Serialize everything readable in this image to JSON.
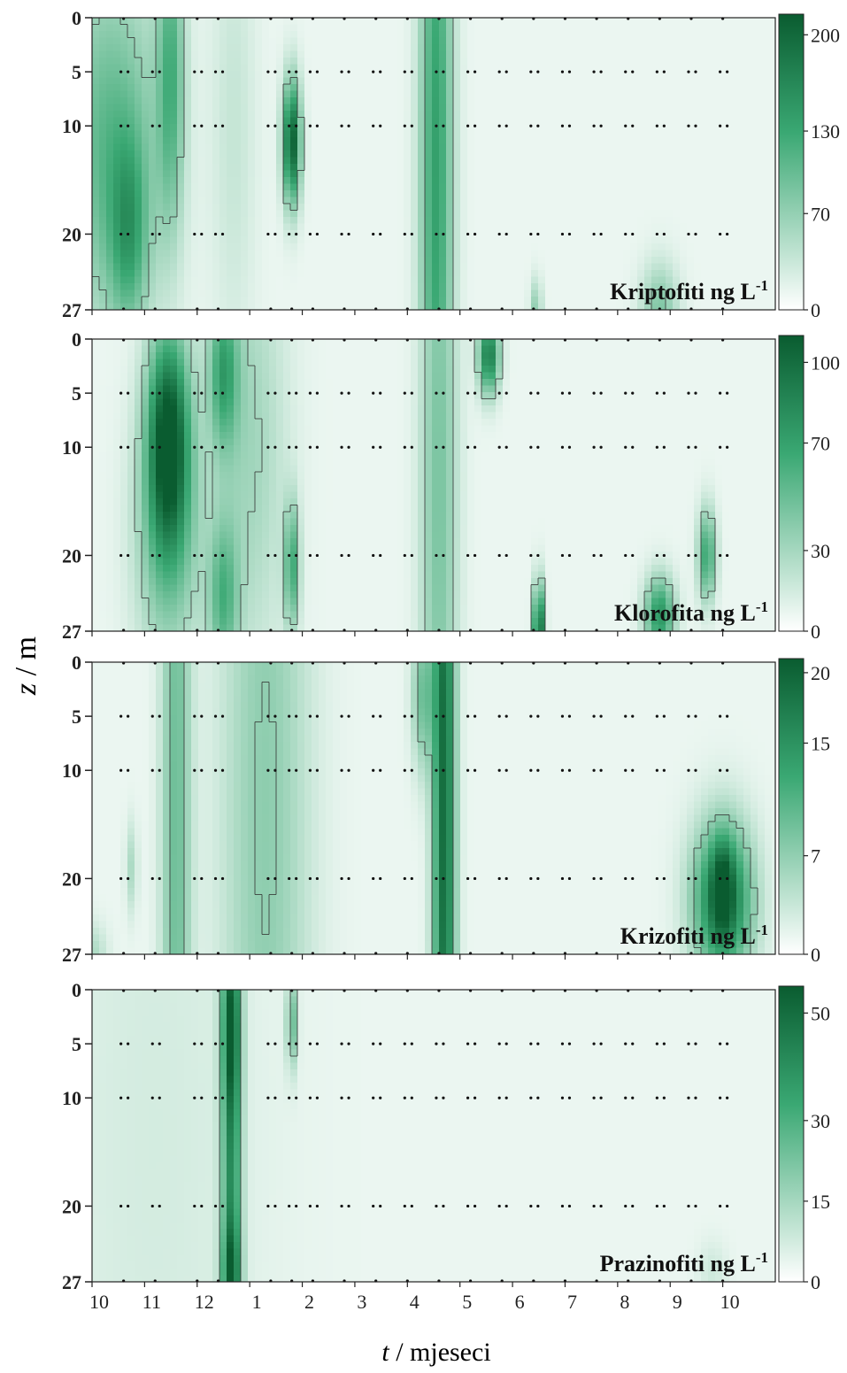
{
  "figure": {
    "y_axis_label_var": "z",
    "y_axis_label_unit": " / m",
    "x_axis_label_var": "t",
    "x_axis_label_unit": " / mjeseci",
    "colors": {
      "low": "#ffffff",
      "mid": "#3aa873",
      "high": "#0a5c30",
      "contour": "#333333",
      "dot": "#111111"
    }
  },
  "chart_data": [
    {
      "type": "heatmap",
      "title": "Kriptofiti ng L",
      "title_sup": "-1",
      "colorbar": {
        "ticks": [
          0,
          70,
          130,
          200
        ],
        "max": 215
      },
      "x_ticks": [
        "10",
        "11",
        "12",
        "1",
        "2",
        "3",
        "4",
        "5",
        "6",
        "7",
        "8",
        "9",
        "10"
      ],
      "y_ticks": [
        0,
        5,
        10,
        20,
        27
      ],
      "ylim": [
        0,
        27
      ],
      "blobs": [
        {
          "t": 0.35,
          "z": 12,
          "st": 0.7,
          "sz": 12,
          "v": 95
        },
        {
          "t": 0.7,
          "z": 20,
          "st": 0.25,
          "sz": 6,
          "v": 80
        },
        {
          "t": 1.5,
          "z": 5,
          "st": 0.18,
          "sz": 10,
          "v": 95
        },
        {
          "t": 3.8,
          "z": 11.5,
          "st": 0.12,
          "sz": 4,
          "v": 200
        },
        {
          "t": 6.55,
          "z": 13.5,
          "st": 0.22,
          "sz": 30,
          "v": 125
        },
        {
          "t": 2.7,
          "z": 10,
          "st": 0.3,
          "sz": 15,
          "v": 25
        },
        {
          "t": 10.8,
          "z": 27,
          "st": 0.25,
          "sz": 3,
          "v": 70
        },
        {
          "t": 8.45,
          "z": 27,
          "st": 0.08,
          "sz": 2,
          "v": 60
        }
      ],
      "sampling_months": [
        0.6,
        1.2,
        2.0,
        2.4,
        3.4,
        3.8,
        4.2,
        4.8,
        5.4,
        6.0,
        6.6,
        7.2,
        7.8,
        8.4,
        9.0,
        9.6,
        10.2,
        10.8,
        11.4,
        12.0
      ],
      "sampling_depths": [
        5,
        10,
        20
      ]
    },
    {
      "type": "heatmap",
      "title": "Klorofita ng L",
      "title_sup": "-1",
      "colorbar": {
        "ticks": [
          0,
          30,
          70,
          100
        ],
        "max": 110
      },
      "x_ticks": [
        "10",
        "11",
        "12",
        "1",
        "2",
        "3",
        "4",
        "5",
        "6",
        "7",
        "8",
        "9",
        "10"
      ],
      "y_ticks": [
        0,
        5,
        10,
        20,
        27
      ],
      "ylim": [
        0,
        27
      ],
      "blobs": [
        {
          "t": 1.45,
          "z": 9,
          "st": 0.28,
          "sz": 7,
          "v": 100
        },
        {
          "t": 1.45,
          "z": 18,
          "st": 0.45,
          "sz": 9,
          "v": 40
        },
        {
          "t": 2.5,
          "z": 3,
          "st": 0.2,
          "sz": 5,
          "v": 55
        },
        {
          "t": 2.5,
          "z": 24,
          "st": 0.2,
          "sz": 5,
          "v": 45
        },
        {
          "t": 3.8,
          "z": 21,
          "st": 0.1,
          "sz": 4,
          "v": 55
        },
        {
          "t": 3.0,
          "z": 10,
          "st": 0.5,
          "sz": 15,
          "v": 25
        },
        {
          "t": 6.6,
          "z": 13,
          "st": 0.25,
          "sz": 30,
          "v": 38
        },
        {
          "t": 7.55,
          "z": 1.5,
          "st": 0.14,
          "sz": 2.5,
          "v": 85
        },
        {
          "t": 8.5,
          "z": 27,
          "st": 0.07,
          "sz": 3,
          "v": 110
        },
        {
          "t": 10.8,
          "z": 25.5,
          "st": 0.2,
          "sz": 2.5,
          "v": 70
        },
        {
          "t": 11.7,
          "z": 20,
          "st": 0.12,
          "sz": 3,
          "v": 60
        }
      ],
      "sampling_months": [
        0.6,
        1.2,
        2.0,
        2.4,
        3.4,
        3.8,
        4.2,
        4.8,
        5.4,
        6.0,
        6.6,
        7.2,
        7.8,
        8.4,
        9.0,
        9.6,
        10.2,
        10.8,
        11.4,
        12.0
      ],
      "sampling_depths": [
        5,
        10,
        20
      ]
    },
    {
      "type": "heatmap",
      "title": "Krizofiti ng L",
      "title_sup": "-1",
      "colorbar": {
        "ticks": [
          0,
          7,
          15,
          20
        ],
        "max": 21
      },
      "x_ticks": [
        "10",
        "11",
        "12",
        "1",
        "2",
        "3",
        "4",
        "5",
        "6",
        "7",
        "8",
        "9",
        "10"
      ],
      "y_ticks": [
        0,
        5,
        10,
        20,
        27
      ],
      "ylim": [
        0,
        27
      ],
      "blobs": [
        {
          "t": 1.6,
          "z": 13.5,
          "st": 0.2,
          "sz": 40,
          "v": 8
        },
        {
          "t": 3.3,
          "z": 13.5,
          "st": 0.6,
          "sz": 40,
          "v": 6
        },
        {
          "t": 6.7,
          "z": 13.5,
          "st": 0.15,
          "sz": 40,
          "v": 18
        },
        {
          "t": 6.3,
          "z": 3,
          "st": 0.15,
          "sz": 5,
          "v": 8
        },
        {
          "t": 12.0,
          "z": 22,
          "st": 0.4,
          "sz": 5,
          "v": 18
        },
        {
          "t": 12.0,
          "z": 20.5,
          "st": 0.14,
          "sz": 3,
          "v": 7
        },
        {
          "t": 0.75,
          "z": 19,
          "st": 0.08,
          "sz": 3,
          "v": 4
        },
        {
          "t": 0.0,
          "z": 27,
          "st": 0.2,
          "sz": 2,
          "v": 4
        }
      ],
      "sampling_months": [
        0.6,
        1.2,
        2.0,
        2.4,
        3.4,
        3.8,
        4.2,
        4.8,
        5.4,
        6.0,
        6.6,
        7.2,
        7.8,
        8.4,
        9.0,
        9.6,
        10.2,
        10.8,
        11.4,
        12.0
      ],
      "sampling_depths": [
        5,
        10,
        20
      ]
    },
    {
      "type": "heatmap",
      "title": "Prazinofiti ng L",
      "title_sup": "-1",
      "colorbar": {
        "ticks": [
          0,
          15,
          30,
          50
        ],
        "max": 55
      },
      "x_ticks": [
        "10",
        "11",
        "12",
        "1",
        "2",
        "3",
        "4",
        "5",
        "6",
        "7",
        "8",
        "9",
        "10"
      ],
      "y_ticks": [
        0,
        5,
        10,
        20,
        27
      ],
      "ylim": [
        0,
        27
      ],
      "blobs": [
        {
          "t": 2.65,
          "z": 13.5,
          "st": 0.13,
          "sz": 40,
          "v": 35
        },
        {
          "t": 2.65,
          "z": 4,
          "st": 0.12,
          "sz": 5,
          "v": 20
        },
        {
          "t": 2.65,
          "z": 26,
          "st": 0.12,
          "sz": 3,
          "v": 20
        },
        {
          "t": 3.8,
          "z": 3,
          "st": 0.07,
          "sz": 3,
          "v": 22
        },
        {
          "t": 1.2,
          "z": 13.5,
          "st": 1.5,
          "sz": 40,
          "v": 4
        },
        {
          "t": 11.8,
          "z": 26,
          "st": 0.2,
          "sz": 2,
          "v": 5
        }
      ],
      "sampling_months": [
        0.6,
        1.2,
        2.0,
        2.4,
        3.4,
        3.8,
        4.2,
        4.8,
        5.4,
        6.0,
        6.6,
        7.2,
        7.8,
        8.4,
        9.0,
        9.6,
        10.2,
        10.8,
        11.4,
        12.0
      ],
      "sampling_depths": [
        5,
        10,
        20
      ]
    }
  ]
}
